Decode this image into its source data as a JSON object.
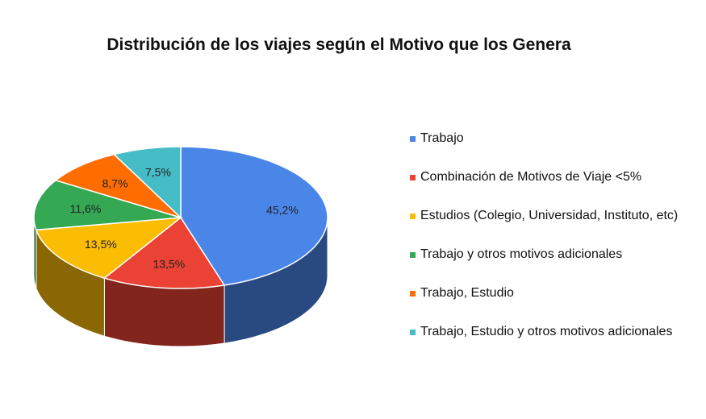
{
  "chart_data": {
    "type": "pie",
    "title": "Distribución de los viajes según el Motivo que los Genera",
    "legend_position": "right",
    "slices": [
      {
        "label": "Trabajo",
        "value": 45.2,
        "value_label": "45,2%",
        "color": "#4a86e8"
      },
      {
        "label": "Combinación de Motivos de Viaje <5%",
        "value": 13.5,
        "value_label": "13,5%",
        "color": "#ea4335"
      },
      {
        "label": "Estudios (Colegio, Universidad, Instituto, etc)",
        "value": 13.5,
        "value_label": "13,5%",
        "color": "#fbbc04"
      },
      {
        "label": "Trabajo y otros motivos adicionales",
        "value": 11.6,
        "value_label": "11,6%",
        "color": "#34a853"
      },
      {
        "label": "Trabajo, Estudio",
        "value": 8.7,
        "value_label": "8,7%",
        "color": "#ff6d01"
      },
      {
        "label": "Trabajo, Estudio y otros motivos adicionales",
        "value": 7.5,
        "value_label": "7,5%",
        "color": "#46bdc6"
      }
    ]
  }
}
